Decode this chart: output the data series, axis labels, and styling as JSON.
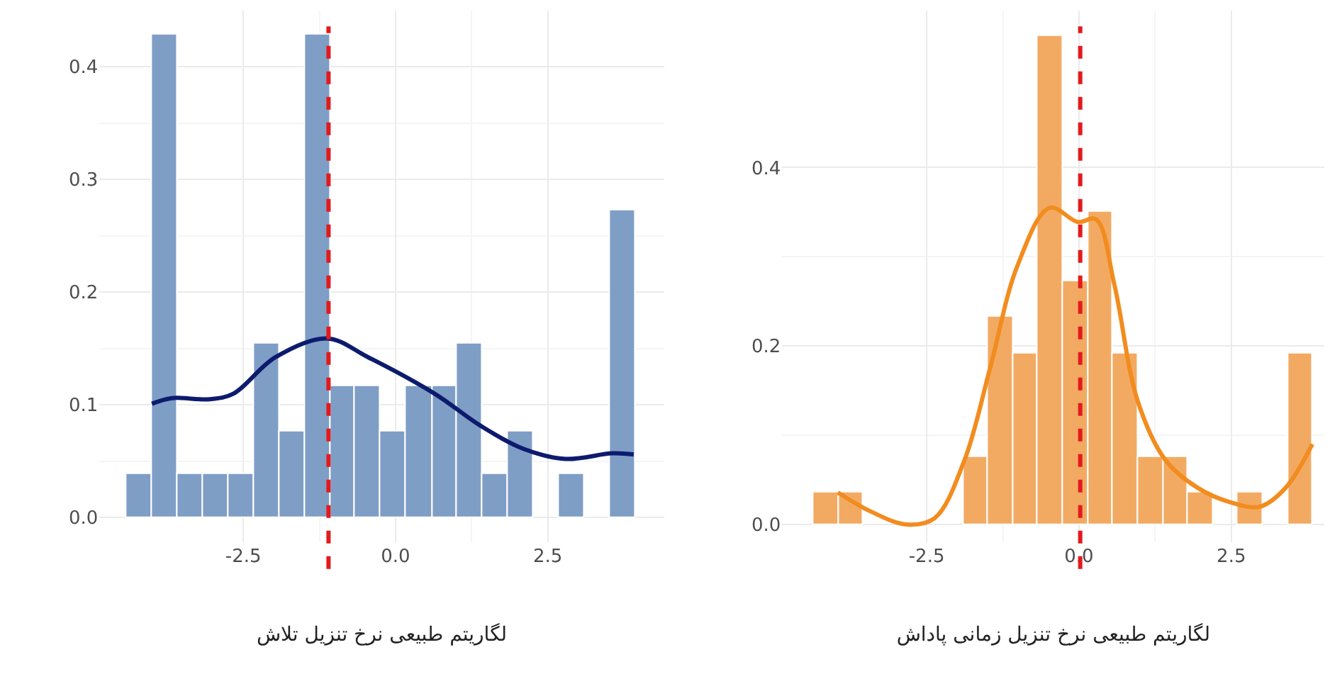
{
  "chart_data": [
    {
      "type": "histogram",
      "xlabel": "لگاریتم طبیعی نرخ تنزیل تلاش",
      "series": [
        {
          "color": "#7f9ec6",
          "bins": [
            -4.42,
            -4.0,
            -3.58,
            -3.17,
            -2.75,
            -2.33,
            -1.91,
            -1.49,
            -1.07,
            -0.66,
            -0.24,
            0.18,
            0.6,
            1.01,
            1.43,
            1.85,
            2.27,
            2.69,
            3.11,
            3.53,
            3.94
          ],
          "values": [
            0.038,
            0.428,
            0.038,
            0.038,
            0.038,
            0.154,
            0.076,
            0.428,
            0.116,
            0.116,
            0.076,
            0.116,
            0.116,
            0.154,
            0.038,
            0.076,
            0,
            0.038,
            0,
            0.272
          ]
        },
        {
          "type": "line",
          "color": "#0d1b6e",
          "x": [
            -4.0,
            -3.67,
            -3.05,
            -2.66,
            -1.98,
            -1.13,
            -0.44,
            0.64,
            1.41,
            2.1,
            2.79,
            3.56,
            3.91
          ],
          "values": [
            0.101,
            0.106,
            0.105,
            0.11,
            0.142,
            0.159,
            0.142,
            0.11,
            0.081,
            0.061,
            0.052,
            0.057,
            0.056
          ]
        }
      ],
      "ref_lines": [
        {
          "axis": "x",
          "value": -1.1,
          "color": "#e31a1c",
          "line_style": "dashed"
        }
      ],
      "xlim": [
        -4.86,
        4.41
      ],
      "ylim": [
        -0.022,
        0.45
      ],
      "xticks": [
        {
          "value": -2.5,
          "label": "-2.5"
        },
        {
          "value": 0,
          "label": "0.0"
        },
        {
          "value": 2.5,
          "label": "2.5"
        }
      ],
      "yticks": [
        {
          "value": 0,
          "label": "0.0"
        },
        {
          "value": 0.1,
          "label": "0.1"
        },
        {
          "value": 0.2,
          "label": "0.2"
        },
        {
          "value": 0.3,
          "label": "0.3"
        },
        {
          "value": 0.4,
          "label": "0.4"
        }
      ],
      "grid": true
    },
    {
      "type": "histogram",
      "xlabel": "لگاریتم طبیعی نرخ تنزیل زمانی پاداش",
      "series": [
        {
          "color": "#f2aa63",
          "bins": [
            -4.36,
            -3.95,
            -3.54,
            -3.13,
            -2.72,
            -2.31,
            -1.9,
            -1.49,
            -1.08,
            -0.67,
            -0.26,
            0.15,
            0.56,
            0.97,
            1.38,
            1.79,
            2.2,
            2.61,
            3.02,
            3.43,
            3.84
          ],
          "values": [
            0.036,
            0.036,
            0,
            0,
            0,
            0,
            0.075,
            0.233,
            0.192,
            0.547,
            0.272,
            0.35,
            0.192,
            0.075,
            0.075,
            0.036,
            0,
            0.036,
            0,
            0.192
          ]
        },
        {
          "type": "line",
          "color": "#f28c1f",
          "x": [
            -3.96,
            -3.43,
            -2.83,
            -2.37,
            -1.88,
            -1.46,
            -1.01,
            -0.48,
            -0.02,
            0.28,
            0.58,
            0.96,
            1.42,
            1.95,
            2.48,
            2.97,
            3.39,
            3.83
          ],
          "values": [
            0.036,
            0.015,
            0.0,
            0.007,
            0.072,
            0.175,
            0.29,
            0.355,
            0.339,
            0.342,
            0.269,
            0.139,
            0.072,
            0.041,
            0.025,
            0.02,
            0.041,
            0.09
          ]
        }
      ],
      "ref_lines": [
        {
          "axis": "x",
          "value": 0.02,
          "color": "#e31a1c",
          "line_style": "dashed"
        }
      ],
      "xlim": [
        -4.87,
        4.03
      ],
      "ylim": [
        -0.02,
        0.576
      ],
      "xticks": [
        {
          "value": -2.5,
          "label": "-2.5"
        },
        {
          "value": 0,
          "label": "0.0"
        },
        {
          "value": 2.5,
          "label": "2.5"
        }
      ],
      "yticks": [
        {
          "value": 0,
          "label": "0.0"
        },
        {
          "value": 0.2,
          "label": "0.2"
        },
        {
          "value": 0.4,
          "label": "0.4"
        }
      ],
      "grid": true
    }
  ]
}
